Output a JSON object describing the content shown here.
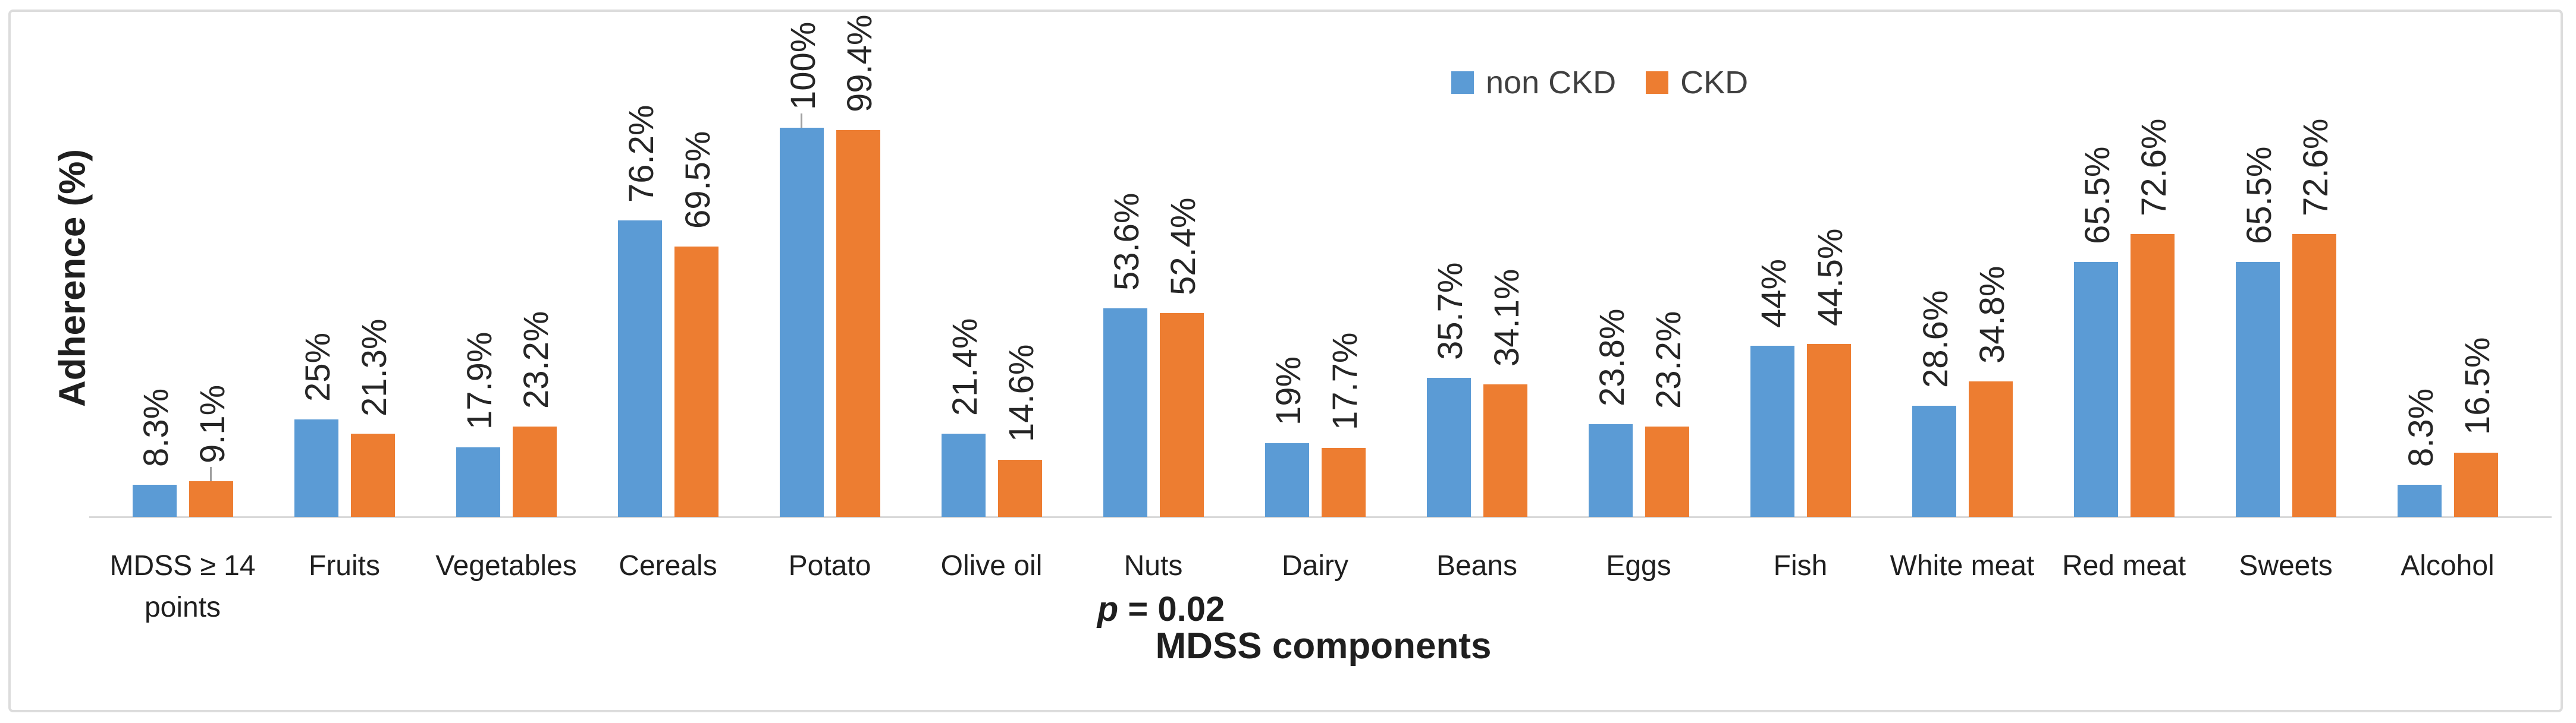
{
  "chart_data": {
    "type": "bar",
    "title": "",
    "xlabel": "MDSS components",
    "ylabel": "Adherence (%)",
    "ylim": [
      0,
      100
    ],
    "grid": false,
    "legend_position": "top-right",
    "categories": [
      "MDSS ≥ 14 points",
      "Fruits",
      "Vegetables",
      "Cereals",
      "Potato",
      "Olive oil",
      "Nuts",
      "Dairy",
      "Beans",
      "Eggs",
      "Fish",
      "White meat",
      "Red meat",
      "Sweets",
      "Alcohol"
    ],
    "series": [
      {
        "name": "non CKD",
        "color": "#5B9BD5",
        "values": [
          8.3,
          25,
          17.9,
          76.2,
          100,
          21.4,
          53.6,
          19,
          35.7,
          23.8,
          44,
          28.6,
          65.5,
          65.5,
          8.3
        ],
        "labels": [
          "8.3%",
          "25%",
          "17.9%",
          "76.2%",
          "100%",
          "21.4%",
          "53.6%",
          "19%",
          "35.7%",
          "23.8%",
          "44%",
          "28.6%",
          "65.5%",
          "65.5%",
          "8.3%"
        ]
      },
      {
        "name": "CKD",
        "color": "#ED7D31",
        "values": [
          9.1,
          21.3,
          23.2,
          69.5,
          99.4,
          14.6,
          52.4,
          17.7,
          34.1,
          23.2,
          44.5,
          34.8,
          72.6,
          72.6,
          16.5
        ],
        "labels": [
          "9.1%",
          "21.3%",
          "23.2%",
          "69.5%",
          "99.4%",
          "14.6%",
          "52.4%",
          "17.7%",
          "34.1%",
          "23.2%",
          "44.5%",
          "34.8%",
          "72.6%",
          "72.6%",
          "16.5%"
        ]
      }
    ],
    "error_ticks": [
      {
        "category_index": 0,
        "series_index": 1
      },
      {
        "category_index": 4,
        "series_index": 0
      }
    ],
    "p_value": {
      "symbol": "p",
      "text": " = 0.02"
    }
  }
}
